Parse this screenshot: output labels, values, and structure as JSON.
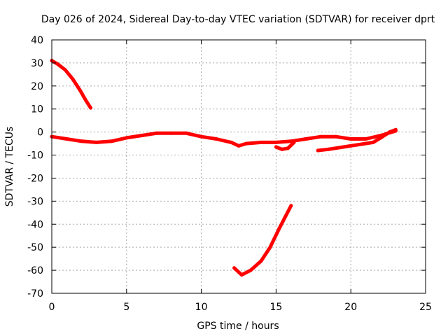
{
  "chart_data": {
    "type": "scatter",
    "title": "Day 026 of 2024, Sidereal Day-to-day VTEC variation (SDTVAR) for receiver dprt",
    "xlabel": "GPS time / hours",
    "ylabel": "SDTVAR / TECUs",
    "xlim": [
      0,
      25
    ],
    "ylim": [
      -70,
      40
    ],
    "xticks": [
      0,
      5,
      10,
      15,
      20,
      25
    ],
    "yticks": [
      40,
      30,
      20,
      10,
      0,
      -10,
      -20,
      -30,
      -40,
      -50,
      -60,
      -70
    ],
    "grid": true,
    "legend": "none",
    "series_color": "#ff0000",
    "series": [
      {
        "name": "early-satellite-arc",
        "points": [
          [
            0.0,
            31.0
          ],
          [
            0.4,
            29.5
          ],
          [
            0.9,
            27.0
          ],
          [
            1.4,
            23.0
          ],
          [
            1.9,
            18.0
          ],
          [
            2.3,
            13.5
          ],
          [
            2.6,
            10.5
          ]
        ]
      },
      {
        "name": "main-band-arc",
        "points": [
          [
            0.0,
            -2.0
          ],
          [
            1.0,
            -3.0
          ],
          [
            2.0,
            -4.0
          ],
          [
            3.0,
            -4.5
          ],
          [
            4.0,
            -4.0
          ],
          [
            5.0,
            -2.5
          ],
          [
            6.0,
            -1.5
          ],
          [
            7.0,
            -0.5
          ],
          [
            8.0,
            -0.5
          ],
          [
            9.0,
            -0.5
          ],
          [
            10.0,
            -2.0
          ],
          [
            11.0,
            -3.0
          ],
          [
            12.0,
            -4.5
          ],
          [
            12.5,
            -6.0
          ],
          [
            13.0,
            -5.0
          ],
          [
            14.0,
            -4.5
          ],
          [
            15.0,
            -4.5
          ],
          [
            16.0,
            -4.0
          ],
          [
            17.0,
            -3.0
          ],
          [
            18.0,
            -2.0
          ],
          [
            19.0,
            -2.0
          ],
          [
            20.0,
            -3.0
          ],
          [
            21.0,
            -3.0
          ],
          [
            22.0,
            -1.5
          ],
          [
            23.0,
            0.5
          ]
        ]
      },
      {
        "name": "lower-band-arc",
        "points": [
          [
            15.0,
            -6.5
          ],
          [
            15.4,
            -7.5
          ],
          [
            15.8,
            -7.0
          ],
          [
            16.2,
            -4.5
          ]
        ]
      },
      {
        "name": "afternoon-arc",
        "points": [
          [
            17.8,
            -8.0
          ],
          [
            18.5,
            -7.5
          ],
          [
            19.5,
            -6.5
          ],
          [
            20.5,
            -5.5
          ],
          [
            21.5,
            -4.5
          ],
          [
            22.0,
            -2.5
          ],
          [
            22.6,
            0.0
          ],
          [
            23.0,
            1.0
          ]
        ]
      },
      {
        "name": "deep-dip-arc",
        "points": [
          [
            12.2,
            -59.0
          ],
          [
            12.7,
            -62.0
          ],
          [
            13.3,
            -60.0
          ],
          [
            14.0,
            -56.0
          ],
          [
            14.6,
            -50.0
          ],
          [
            15.2,
            -42.0
          ],
          [
            15.6,
            -37.0
          ],
          [
            16.0,
            -32.0
          ]
        ]
      }
    ]
  }
}
